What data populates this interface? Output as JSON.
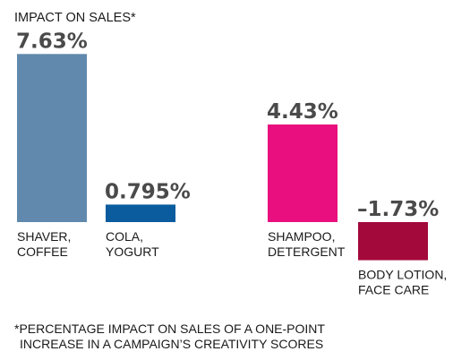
{
  "chart_data": {
    "type": "bar",
    "title": "IMPACT ON SALES*",
    "unit": "%",
    "categories": [
      [
        "SHAVER,",
        "COFFEE"
      ],
      [
        "COLA,",
        "YOGURT"
      ],
      [
        "SHAMPOO,",
        "DETERGENT"
      ],
      [
        "BODY LOTION,",
        "FACE CARE"
      ]
    ],
    "values": [
      7.63,
      0.795,
      4.43,
      -1.73
    ],
    "value_labels": [
      "7.63%",
      "0.795%",
      "4.43%",
      "–1.73%"
    ],
    "colors": [
      "#6089ad",
      "#0a5c9e",
      "#ea0f7e",
      "#a3093b"
    ],
    "ylim": [
      -1.73,
      7.63
    ],
    "grid": false,
    "footnote": [
      "*PERCENTAGE IMPACT ON SALES OF A ONE-POINT",
      "INCREASE IN A CAMPAIGN’S CREATIVITY SCORES"
    ]
  }
}
